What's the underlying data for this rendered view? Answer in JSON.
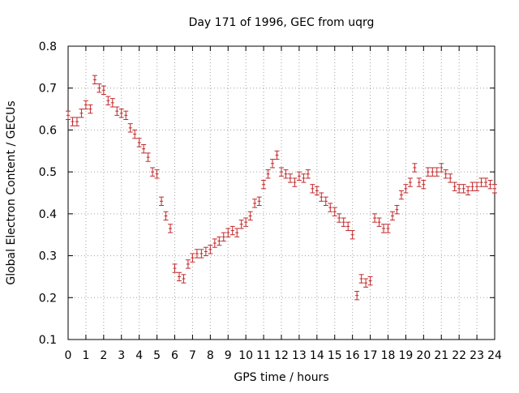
{
  "chart_data": {
    "type": "scatter",
    "title": "Day 171 of 1996, GEC from uqrg",
    "xlabel": "GPS time / hours",
    "ylabel": "Global Electron Content / GECUs",
    "xlim": [
      0,
      24
    ],
    "ylim": [
      0.1,
      0.8
    ],
    "grid": true,
    "x_ticks": [
      0,
      1,
      2,
      3,
      4,
      5,
      6,
      7,
      8,
      9,
      10,
      11,
      12,
      13,
      14,
      15,
      16,
      17,
      18,
      19,
      20,
      21,
      22,
      23,
      24
    ],
    "x_tick_labels": [
      "0",
      "1",
      "2",
      "3",
      "4",
      "5",
      "6",
      "7",
      "8",
      "9",
      "10",
      "11",
      "12",
      "13",
      "14",
      "15",
      "16",
      "17",
      "18",
      "19",
      "20",
      "21",
      "22",
      "23",
      "24"
    ],
    "y_ticks": [
      0.1,
      0.2,
      0.3,
      0.4,
      0.5,
      0.6,
      0.7,
      0.8
    ],
    "y_tick_labels": [
      "0.1",
      "0.2",
      "0.3",
      "0.4",
      "0.5",
      "0.6",
      "0.7",
      "0.8"
    ],
    "error_bar": 0.01,
    "colors": {
      "series": "#c0282a",
      "grid": "#a0a0a0",
      "axis": "#000000"
    },
    "x": [
      0,
      0.25,
      0.5,
      0.75,
      1,
      1.25,
      1.5,
      1.75,
      2,
      2.25,
      2.5,
      2.75,
      3,
      3.25,
      3.5,
      3.75,
      4,
      4.25,
      4.5,
      4.75,
      5,
      5.25,
      5.5,
      5.75,
      6,
      6.25,
      6.5,
      6.75,
      7,
      7.25,
      7.5,
      7.75,
      8,
      8.25,
      8.5,
      8.75,
      9,
      9.25,
      9.5,
      9.75,
      10,
      10.25,
      10.5,
      10.75,
      11,
      11.25,
      11.5,
      11.75,
      12,
      12.25,
      12.5,
      12.75,
      13,
      13.25,
      13.5,
      13.75,
      14,
      14.25,
      14.5,
      14.75,
      15,
      15.25,
      15.5,
      15.75,
      16,
      16.25,
      16.5,
      16.75,
      17,
      17.25,
      17.5,
      17.75,
      18,
      18.25,
      18.5,
      18.75,
      19,
      19.25,
      19.5,
      19.75,
      20,
      20.25,
      20.5,
      20.75,
      21,
      21.25,
      21.5,
      21.75,
      22,
      22.25,
      22.5,
      22.75,
      23,
      23.25,
      23.5,
      23.75,
      24
    ],
    "y": [
      0.635,
      0.62,
      0.62,
      0.64,
      0.66,
      0.65,
      0.72,
      0.7,
      0.695,
      0.67,
      0.665,
      0.645,
      0.64,
      0.635,
      0.605,
      0.59,
      0.57,
      0.555,
      0.535,
      0.5,
      0.495,
      0.43,
      0.395,
      0.365,
      0.27,
      0.25,
      0.245,
      0.28,
      0.295,
      0.305,
      0.305,
      0.31,
      0.315,
      0.33,
      0.335,
      0.345,
      0.355,
      0.36,
      0.355,
      0.375,
      0.38,
      0.395,
      0.425,
      0.43,
      0.47,
      0.495,
      0.52,
      0.54,
      0.5,
      0.495,
      0.485,
      0.475,
      0.49,
      0.485,
      0.495,
      0.46,
      0.455,
      0.44,
      0.43,
      0.415,
      0.405,
      0.39,
      0.38,
      0.37,
      0.35,
      0.205,
      0.245,
      0.235,
      0.24,
      0.39,
      0.38,
      0.365,
      0.365,
      0.395,
      0.41,
      0.445,
      0.46,
      0.475,
      0.51,
      0.475,
      0.47,
      0.5,
      0.5,
      0.5,
      0.51,
      0.495,
      0.485,
      0.465,
      0.46,
      0.46,
      0.455,
      0.465,
      0.465,
      0.475,
      0.475,
      0.47,
      0.46
    ]
  }
}
